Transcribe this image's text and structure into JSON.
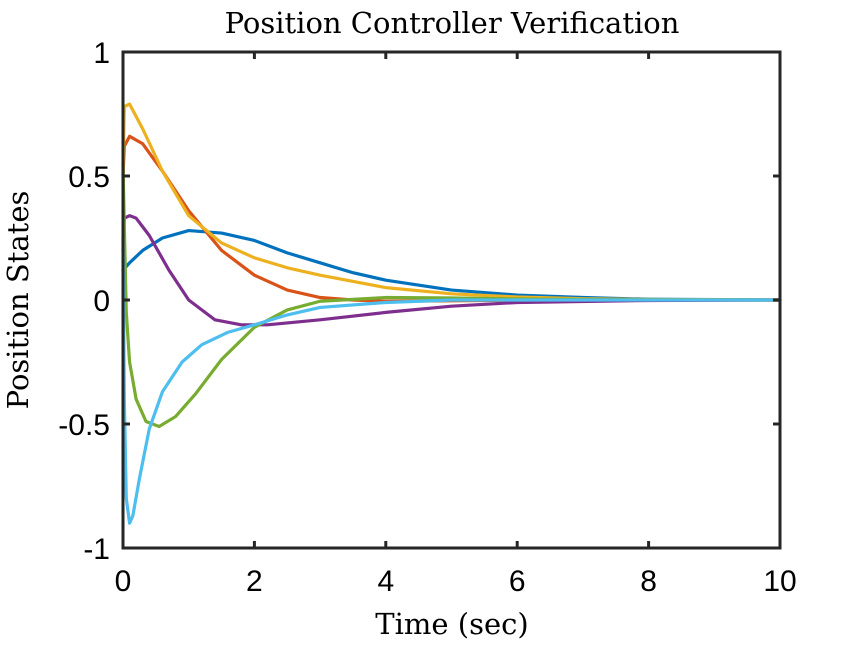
{
  "chart_data": {
    "type": "line",
    "title": "Position Controller Verification",
    "xlabel": "Time (sec)",
    "ylabel": "Position States",
    "xlim": [
      0,
      10
    ],
    "ylim": [
      -1,
      1
    ],
    "xticks": [
      0,
      2,
      4,
      6,
      8,
      10
    ],
    "xtick_labels": [
      "0",
      "2",
      "4",
      "6",
      "8",
      "10"
    ],
    "yticks": [
      -1,
      -0.5,
      0,
      0.5,
      1
    ],
    "ytick_labels": [
      "-1",
      "-0.5",
      "0",
      "0.5",
      "1"
    ],
    "grid": false,
    "legend": "none",
    "series": [
      {
        "color": "#0072BD",
        "x": [
          0,
          0.1,
          0.3,
          0.6,
          1.0,
          1.5,
          2.0,
          2.5,
          3.0,
          3.5,
          4.0,
          5.0,
          6.0,
          7.0,
          8.0,
          10.0
        ],
        "values": [
          0.12,
          0.15,
          0.2,
          0.25,
          0.28,
          0.27,
          0.24,
          0.19,
          0.15,
          0.11,
          0.08,
          0.04,
          0.02,
          0.01,
          0.003,
          0.0
        ]
      },
      {
        "color": "#D95319",
        "x": [
          0,
          0.02,
          0.1,
          0.3,
          0.6,
          1.0,
          1.5,
          2.0,
          2.5,
          3.0,
          3.5,
          4.0,
          5.0,
          6.0,
          8.0,
          10.0
        ],
        "values": [
          0.5,
          0.62,
          0.66,
          0.63,
          0.52,
          0.36,
          0.2,
          0.1,
          0.04,
          0.01,
          0.0,
          -0.005,
          -0.003,
          -0.001,
          0.0,
          0.0
        ]
      },
      {
        "color": "#EDB120",
        "x": [
          0,
          0.02,
          0.1,
          0.3,
          0.6,
          1.0,
          1.5,
          2.0,
          2.5,
          3.0,
          4.0,
          5.0,
          6.0,
          7.0,
          8.0,
          10.0
        ],
        "values": [
          0.5,
          0.78,
          0.79,
          0.69,
          0.52,
          0.34,
          0.23,
          0.17,
          0.13,
          0.1,
          0.05,
          0.025,
          0.012,
          0.005,
          0.002,
          0.0
        ]
      },
      {
        "color": "#7E2F8E",
        "x": [
          0,
          0.02,
          0.1,
          0.2,
          0.4,
          0.7,
          1.0,
          1.4,
          1.8,
          2.2,
          3.0,
          4.0,
          5.0,
          6.0,
          8.0,
          10.0
        ],
        "values": [
          0.2,
          0.33,
          0.34,
          0.33,
          0.26,
          0.12,
          0.0,
          -0.08,
          -0.1,
          -0.1,
          -0.08,
          -0.05,
          -0.025,
          -0.01,
          -0.002,
          0.0
        ]
      },
      {
        "color": "#77AC30",
        "x": [
          0,
          0.02,
          0.05,
          0.1,
          0.2,
          0.35,
          0.55,
          0.8,
          1.1,
          1.5,
          2.0,
          2.5,
          3.0,
          4.0,
          5.0,
          6.0,
          8.0,
          10.0
        ],
        "values": [
          0.55,
          0.3,
          -0.05,
          -0.25,
          -0.4,
          -0.49,
          -0.51,
          -0.47,
          -0.38,
          -0.24,
          -0.11,
          -0.04,
          -0.005,
          0.01,
          0.008,
          0.004,
          0.001,
          0.0
        ]
      },
      {
        "color": "#4DBEEE",
        "x": [
          0,
          0.02,
          0.05,
          0.1,
          0.15,
          0.25,
          0.4,
          0.6,
          0.9,
          1.2,
          1.6,
          2.0,
          2.5,
          3.0,
          4.0,
          5.0,
          6.0,
          8.0,
          10.0
        ],
        "values": [
          0.25,
          -0.4,
          -0.8,
          -0.9,
          -0.87,
          -0.72,
          -0.52,
          -0.37,
          -0.25,
          -0.18,
          -0.13,
          -0.1,
          -0.06,
          -0.03,
          -0.01,
          0.0,
          0.0,
          0.0,
          0.0
        ]
      }
    ]
  }
}
